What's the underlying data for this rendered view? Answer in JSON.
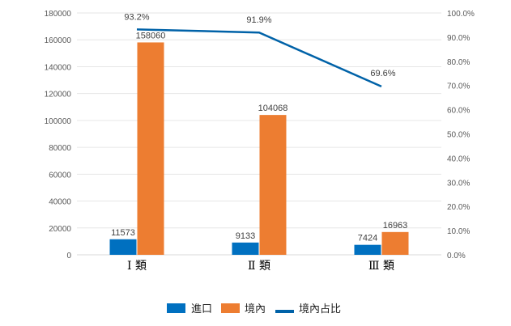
{
  "chart_data": {
    "type": "bar",
    "categories": [
      "Ⅰ 類",
      "Ⅱ 類",
      "Ⅲ 類"
    ],
    "series": [
      {
        "name": "進口",
        "type": "bar",
        "axis": "left",
        "color": "#0070C0",
        "values": [
          11573,
          9133,
          7424
        ],
        "labels": [
          "11573",
          "9133",
          "7424"
        ]
      },
      {
        "name": "境內",
        "type": "bar",
        "axis": "left",
        "color": "#ED7D31",
        "values": [
          158060,
          104068,
          16963
        ],
        "labels": [
          "158060",
          "104068",
          "16963"
        ]
      },
      {
        "name": "境內占比",
        "type": "line",
        "axis": "right",
        "color": "#0062A8",
        "values": [
          93.2,
          91.9,
          69.6
        ],
        "labels": [
          "93.2%",
          "91.9%",
          "69.6%"
        ]
      }
    ],
    "ylim": [
      0,
      180000
    ],
    "yticks": [
      "0",
      "20000",
      "40000",
      "60000",
      "80000",
      "100000",
      "120000",
      "140000",
      "160000",
      "180000"
    ],
    "y2lim": [
      0,
      100
    ],
    "y2ticks": [
      "0.0%",
      "10.0%",
      "20.0%",
      "30.0%",
      "40.0%",
      "50.0%",
      "60.0%",
      "70.0%",
      "80.0%",
      "90.0%",
      "100.0%"
    ],
    "grid": true,
    "legend": "bottom",
    "gridColor": "#E6E6E6"
  }
}
